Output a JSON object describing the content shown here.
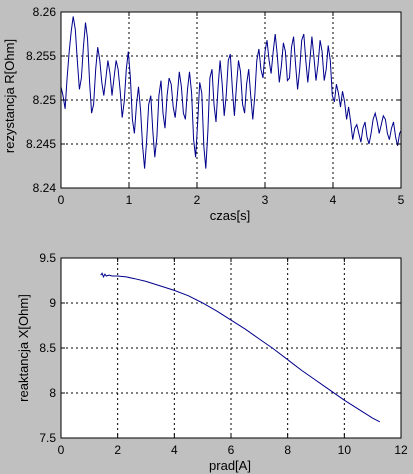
{
  "colors": {
    "figure_background": "#c0c0c0",
    "axes_background": "#ffffff",
    "axis_color": "#000000",
    "grid_color": "#000000",
    "line_color": "#00008b"
  },
  "chart_data": [
    {
      "type": "line",
      "title": "",
      "xlabel": "czas[s]",
      "ylabel": "rezystancja R[Ohm]",
      "xlim": [
        0,
        5
      ],
      "ylim": [
        8.24,
        8.26
      ],
      "grid": true,
      "xticks": [
        0,
        1,
        2,
        3,
        4,
        5
      ],
      "yticks": [
        8.24,
        8.245,
        8.25,
        8.255,
        8.26
      ],
      "xtick_labels": [
        "0",
        "1",
        "2",
        "3",
        "4",
        "5"
      ],
      "ytick_labels": [
        "8.24",
        "8.245",
        "8.25",
        "8.255",
        "8.26"
      ],
      "series": [
        {
          "x": [
            0.0,
            0.03,
            0.06,
            0.09,
            0.12,
            0.15,
            0.18,
            0.21,
            0.24,
            0.27,
            0.3,
            0.33,
            0.36,
            0.39,
            0.42,
            0.45,
            0.48,
            0.51,
            0.54,
            0.57,
            0.6,
            0.63,
            0.66,
            0.69,
            0.72,
            0.75,
            0.78,
            0.81,
            0.84,
            0.87,
            0.9,
            0.93,
            0.96,
            0.99,
            1.02,
            1.05,
            1.08,
            1.11,
            1.14,
            1.17,
            1.2,
            1.23,
            1.26,
            1.29,
            1.32,
            1.35,
            1.38,
            1.41,
            1.44,
            1.47,
            1.5,
            1.53,
            1.56,
            1.59,
            1.62,
            1.65,
            1.68,
            1.71,
            1.74,
            1.77,
            1.8,
            1.83,
            1.86,
            1.89,
            1.92,
            1.95,
            1.98,
            2.01,
            2.04,
            2.07,
            2.1,
            2.13,
            2.16,
            2.19,
            2.22,
            2.25,
            2.28,
            2.31,
            2.34,
            2.37,
            2.4,
            2.43,
            2.46,
            2.49,
            2.52,
            2.55,
            2.58,
            2.61,
            2.64,
            2.67,
            2.7,
            2.73,
            2.76,
            2.79,
            2.82,
            2.85,
            2.88,
            2.91,
            2.94,
            2.97,
            3.0,
            3.03,
            3.06,
            3.09,
            3.12,
            3.15,
            3.18,
            3.21,
            3.24,
            3.27,
            3.3,
            3.33,
            3.36,
            3.39,
            3.42,
            3.45,
            3.48,
            3.51,
            3.54,
            3.57,
            3.6,
            3.63,
            3.66,
            3.69,
            3.72,
            3.75,
            3.78,
            3.81,
            3.84,
            3.87,
            3.9,
            3.93,
            3.96,
            3.99,
            4.02,
            4.05,
            4.08,
            4.11,
            4.14,
            4.17,
            4.2,
            4.23,
            4.26,
            4.29,
            4.32,
            4.35,
            4.38,
            4.41,
            4.44,
            4.47,
            4.5,
            4.53,
            4.56,
            4.59,
            4.62,
            4.65,
            4.68,
            4.71,
            4.74,
            4.77,
            4.8,
            4.83,
            4.86,
            4.89,
            4.92,
            4.95,
            4.98,
            5.0
          ],
          "y": [
            8.2515,
            8.2505,
            8.249,
            8.2525,
            8.2555,
            8.2578,
            8.2595,
            8.258,
            8.2545,
            8.2512,
            8.2525,
            8.256,
            8.2588,
            8.257,
            8.252,
            8.2485,
            8.2495,
            8.2535,
            8.256,
            8.2545,
            8.252,
            8.2505,
            8.2525,
            8.2545,
            8.253,
            8.2505,
            8.2525,
            8.2545,
            8.2535,
            8.251,
            8.248,
            8.2498,
            8.2535,
            8.2555,
            8.2525,
            8.2478,
            8.2462,
            8.2495,
            8.2515,
            8.2488,
            8.2448,
            8.2422,
            8.2455,
            8.2495,
            8.2505,
            8.2465,
            8.2435,
            8.2458,
            8.2505,
            8.2522,
            8.2485,
            8.2468,
            8.2505,
            8.2525,
            8.2518,
            8.2492,
            8.248,
            8.2505,
            8.2532,
            8.2515,
            8.2485,
            8.2478,
            8.2512,
            8.2532,
            8.2508,
            8.2455,
            8.2435,
            8.2475,
            8.252,
            8.2508,
            8.2448,
            8.2422,
            8.2465,
            8.2525,
            8.2535,
            8.2495,
            8.2475,
            8.2515,
            8.2545,
            8.2518,
            8.2482,
            8.2505,
            8.2545,
            8.2552,
            8.2512,
            8.2482,
            8.2515,
            8.2545,
            8.2532,
            8.2495,
            8.2485,
            8.2518,
            8.2535,
            8.2505,
            8.2478,
            8.2505,
            8.2545,
            8.2558,
            8.2535,
            8.2525,
            8.2555,
            8.2568,
            8.2545,
            8.253,
            8.2555,
            8.2575,
            8.2552,
            8.252,
            8.2538,
            8.2565,
            8.2555,
            8.2522,
            8.2525,
            8.256,
            8.2572,
            8.254,
            8.2512,
            8.2535,
            8.2568,
            8.2575,
            8.2545,
            8.252,
            8.2545,
            8.2572,
            8.2548,
            8.2522,
            8.254,
            8.2568,
            8.2555,
            8.2522,
            8.2535,
            8.2562,
            8.2545,
            8.2505,
            8.2498,
            8.2518,
            8.2508,
            8.2492,
            8.251,
            8.2498,
            8.2478,
            8.2492,
            8.2475,
            8.2455,
            8.2468,
            8.2472,
            8.2462,
            8.2452,
            8.2468,
            8.2475,
            8.2458,
            8.245,
            8.2462,
            8.2478,
            8.2485,
            8.2475,
            8.2462,
            8.2472,
            8.2482,
            8.2478,
            8.2462,
            8.2455,
            8.2468,
            8.2475,
            8.2458,
            8.2448,
            8.2462,
            8.2465
          ]
        }
      ]
    },
    {
      "type": "line",
      "title": "",
      "xlabel": "prad[A]",
      "ylabel": "reaktancja X[Ohm]",
      "xlim": [
        0,
        12
      ],
      "ylim": [
        7.5,
        9.5
      ],
      "grid": true,
      "xticks": [
        0,
        2,
        4,
        6,
        8,
        10,
        12
      ],
      "yticks": [
        7.5,
        8,
        8.5,
        9,
        9.5
      ],
      "xtick_labels": [
        "0",
        "2",
        "4",
        "6",
        "8",
        "10",
        "12"
      ],
      "ytick_labels": [
        "7.5",
        "8",
        "8.5",
        "9",
        "9.5"
      ],
      "series": [
        {
          "x": [
            1.4,
            1.45,
            1.5,
            1.55,
            1.6,
            1.7,
            1.8,
            2.0,
            2.3,
            2.6,
            3.0,
            3.5,
            4.0,
            4.5,
            5.0,
            5.5,
            6.0,
            6.5,
            7.0,
            7.5,
            8.0,
            8.5,
            9.0,
            9.5,
            10.0,
            10.5,
            11.0,
            11.25
          ],
          "y": [
            9.31,
            9.33,
            9.29,
            9.32,
            9.3,
            9.31,
            9.3,
            9.3,
            9.29,
            9.27,
            9.24,
            9.19,
            9.14,
            9.08,
            9.0,
            8.91,
            8.81,
            8.71,
            8.6,
            8.49,
            8.37,
            8.25,
            8.14,
            8.03,
            7.92,
            7.82,
            7.72,
            7.68
          ]
        }
      ]
    }
  ]
}
